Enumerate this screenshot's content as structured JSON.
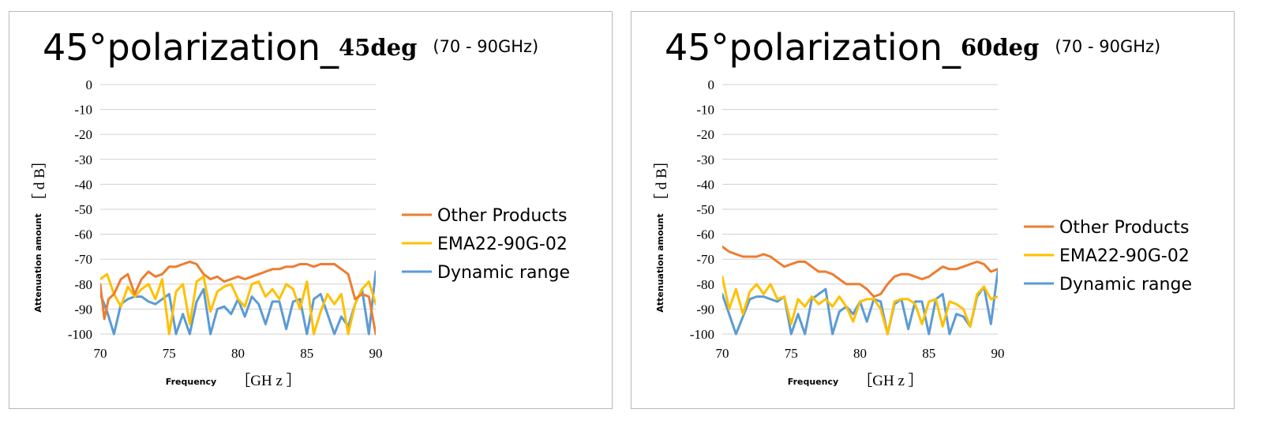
{
  "chart_data": [
    {
      "type": "line",
      "title_main": "45°polarization_",
      "title_deg": "45deg",
      "title_range": "(70 - 90GHz)",
      "xlabel": "Frequency",
      "xunit": "［GH z ］",
      "ylabel": "Attenuation amount",
      "yunit": "［ d B］",
      "xlim": [
        70,
        90
      ],
      "ylim": [
        -100,
        0
      ],
      "xticks": [
        "70",
        "75",
        "80",
        "85",
        "90"
      ],
      "yticks": [
        "0",
        "-10",
        "-20",
        "-30",
        "-40",
        "-50",
        "-60",
        "-70",
        "-80",
        "-90",
        "-100"
      ],
      "grid": true,
      "legend_position": "right",
      "series": [
        {
          "name": "Other Products",
          "color": "#ED7D31",
          "x": [
            70,
            70.3,
            70.6,
            71,
            71.5,
            72,
            72.5,
            73,
            73.5,
            74,
            74.5,
            75,
            75.5,
            76,
            76.5,
            77,
            77.5,
            78,
            78.5,
            79,
            79.5,
            80,
            80.5,
            81,
            81.5,
            82,
            82.5,
            83,
            83.5,
            84,
            84.5,
            85,
            85.5,
            86,
            86.5,
            87,
            87.5,
            88,
            88.5,
            89,
            89.5,
            90
          ],
          "y": [
            -80,
            -94,
            -86,
            -84,
            -78,
            -76,
            -84,
            -78,
            -75,
            -77,
            -76,
            -73,
            -73,
            -72,
            -71,
            -72,
            -76,
            -78,
            -77,
            -79,
            -78,
            -77,
            -78,
            -77,
            -76,
            -75,
            -74,
            -74,
            -73,
            -73,
            -72,
            -72,
            -73,
            -72,
            -72,
            -72,
            -74,
            -76,
            -86,
            -84,
            -85,
            -100
          ]
        },
        {
          "name": "EMA22-90G-02",
          "color": "#FFC000",
          "x": [
            70,
            70.5,
            71,
            71.5,
            72,
            72.5,
            73,
            73.5,
            74,
            74.5,
            75,
            75.5,
            76,
            76.5,
            77,
            77.5,
            78,
            78.5,
            79,
            79.5,
            80,
            80.5,
            81,
            81.5,
            82,
            82.5,
            83,
            83.5,
            84,
            84.5,
            85,
            85.5,
            86,
            86.5,
            87,
            87.5,
            88,
            88.5,
            89,
            89.5,
            90
          ],
          "y": [
            -78,
            -76,
            -84,
            -89,
            -81,
            -85,
            -82,
            -80,
            -86,
            -78,
            -100,
            -83,
            -80,
            -96,
            -79,
            -77,
            -91,
            -83,
            -81,
            -80,
            -86,
            -89,
            -80,
            -79,
            -85,
            -82,
            -86,
            -80,
            -82,
            -90,
            -79,
            -100,
            -91,
            -84,
            -88,
            -84,
            -100,
            -88,
            -82,
            -79,
            -88
          ]
        },
        {
          "name": "Dynamic range",
          "color": "#5B9BD5",
          "x": [
            70,
            70.5,
            71,
            71.5,
            72,
            72.5,
            73,
            73.5,
            74,
            74.5,
            75,
            75.5,
            76,
            76.5,
            77,
            77.5,
            78,
            78.5,
            79,
            79.5,
            80,
            80.5,
            81,
            81.5,
            82,
            82.5,
            83,
            83.5,
            84,
            84.5,
            85,
            85.5,
            86,
            86.5,
            87,
            87.5,
            88,
            88.5,
            89,
            89.5,
            90
          ],
          "y": [
            -84,
            -91,
            -100,
            -88,
            -86,
            -85,
            -85,
            -87,
            -88,
            -86,
            -84,
            -100,
            -92,
            -100,
            -87,
            -82,
            -100,
            -90,
            -89,
            -92,
            -86,
            -93,
            -85,
            -88,
            -96,
            -87,
            -87,
            -98,
            -87,
            -86,
            -100,
            -86,
            -84,
            -92,
            -100,
            -93,
            -97,
            -88,
            -82,
            -100,
            -75
          ]
        }
      ]
    },
    {
      "type": "line",
      "title_main": "45°polarization_",
      "title_deg": "60deg",
      "title_range": "(70 - 90GHz)",
      "xlabel": "Frequency",
      "xunit": "［GH z ］",
      "ylabel": "Attenuation amount",
      "yunit": "［ d B］",
      "xlim": [
        70,
        90
      ],
      "ylim": [
        -100,
        0
      ],
      "xticks": [
        "70",
        "75",
        "80",
        "85",
        "90"
      ],
      "yticks": [
        "0",
        "-10",
        "-20",
        "-30",
        "-40",
        "-50",
        "-60",
        "-70",
        "-80",
        "-90",
        "-100"
      ],
      "grid": true,
      "legend_position": "right",
      "series": [
        {
          "name": "Other Products",
          "color": "#ED7D31",
          "x": [
            70,
            70.5,
            71,
            71.5,
            72,
            72.5,
            73,
            73.5,
            74,
            74.5,
            75,
            75.5,
            76,
            76.5,
            77,
            77.5,
            78,
            78.5,
            79,
            79.5,
            80,
            80.5,
            81,
            81.5,
            82,
            82.5,
            83,
            83.5,
            84,
            84.5,
            85,
            85.5,
            86,
            86.5,
            87,
            87.5,
            88,
            88.5,
            89,
            89.5,
            90
          ],
          "y": [
            -65,
            -67,
            -68,
            -69,
            -69,
            -69,
            -68,
            -69,
            -71,
            -73,
            -72,
            -71,
            -71,
            -73,
            -75,
            -75,
            -76,
            -78,
            -80,
            -80,
            -80,
            -82,
            -85,
            -84,
            -80,
            -77,
            -76,
            -76,
            -77,
            -78,
            -77,
            -75,
            -73,
            -74,
            -74,
            -73,
            -72,
            -71,
            -72,
            -75,
            -74
          ]
        },
        {
          "name": "EMA22-90G-02",
          "color": "#FFC000",
          "x": [
            70,
            70.5,
            71,
            71.5,
            72,
            72.5,
            73,
            73.5,
            74,
            74.5,
            75,
            75.5,
            76,
            76.5,
            77,
            77.5,
            78,
            78.5,
            79,
            79.5,
            80,
            80.5,
            81,
            81.5,
            82,
            82.5,
            83,
            83.5,
            84,
            84.5,
            85,
            85.5,
            86,
            86.5,
            87,
            87.5,
            88,
            88.5,
            89,
            89.5,
            90
          ],
          "y": [
            -77,
            -90,
            -82,
            -92,
            -83,
            -80,
            -84,
            -80,
            -86,
            -85,
            -96,
            -86,
            -89,
            -85,
            -88,
            -86,
            -89,
            -85,
            -89,
            -95,
            -87,
            -86,
            -86,
            -90,
            -100,
            -87,
            -86,
            -86,
            -88,
            -96,
            -87,
            -86,
            -97,
            -87,
            -88,
            -90,
            -97,
            -84,
            -81,
            -86,
            -85
          ]
        },
        {
          "name": "Dynamic range",
          "color": "#5B9BD5",
          "x": [
            70,
            70.5,
            71,
            71.5,
            72,
            72.5,
            73,
            73.5,
            74,
            74.5,
            75,
            75.5,
            76,
            76.5,
            77,
            77.5,
            78,
            78.5,
            79,
            79.5,
            80,
            80.5,
            81,
            81.5,
            82,
            82.5,
            83,
            83.5,
            84,
            84.5,
            85,
            85.5,
            86,
            86.5,
            87,
            87.5,
            88,
            88.5,
            89,
            89.5,
            90
          ],
          "y": [
            -84,
            -92,
            -100,
            -93,
            -86,
            -85,
            -85,
            -86,
            -87,
            -85,
            -100,
            -92,
            -100,
            -86,
            -84,
            -82,
            -100,
            -91,
            -89,
            -92,
            -87,
            -95,
            -86,
            -87,
            -100,
            -88,
            -86,
            -98,
            -87,
            -87,
            -100,
            -86,
            -84,
            -100,
            -92,
            -93,
            -97,
            -85,
            -81,
            -96,
            -75
          ]
        }
      ]
    }
  ]
}
